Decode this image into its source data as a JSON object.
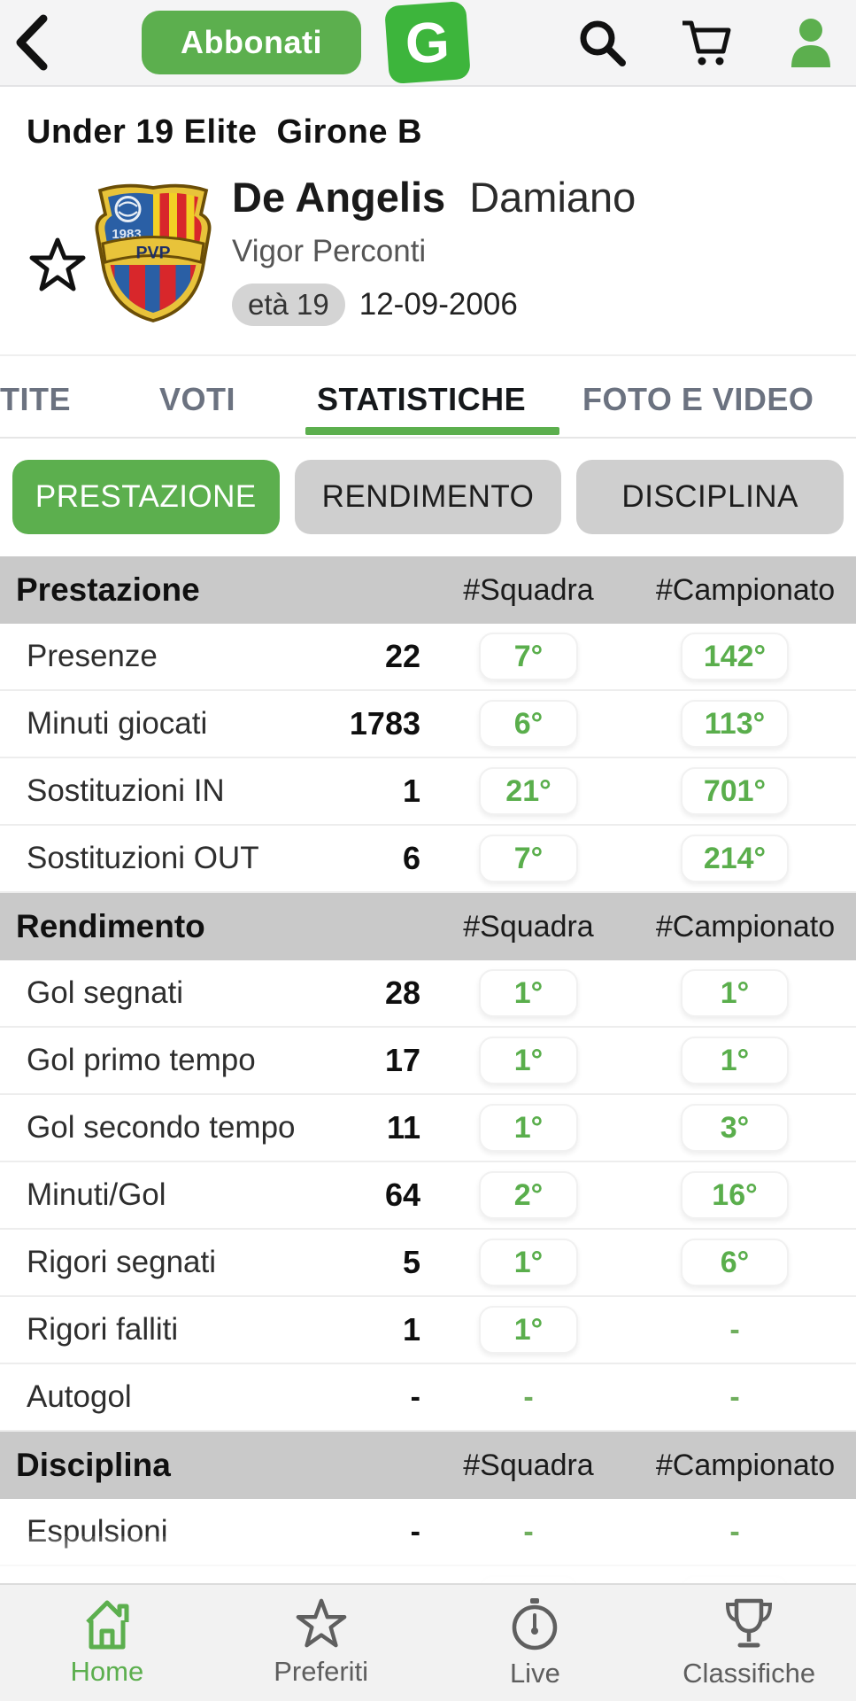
{
  "topbar": {
    "subscribe_label": "Abbonati",
    "logo_letter": "G"
  },
  "page": {
    "league_title": "Under 19 Elite  Girone B"
  },
  "player": {
    "last_name": "De Angelis",
    "first_name": "Damiano",
    "team": "Vigor Perconti",
    "age_label": "età 19",
    "birth_date": "12-09-2006",
    "crest_initials": "PVP",
    "crest_year": "1983"
  },
  "tabs": [
    {
      "label": "TITE",
      "active": false
    },
    {
      "label": "VOTI",
      "active": false
    },
    {
      "label": "STATISTICHE",
      "active": true
    },
    {
      "label": "FOTO E VIDEO",
      "active": false
    }
  ],
  "segments": [
    {
      "label": "PRESTAZIONE",
      "active": true
    },
    {
      "label": "RENDIMENTO",
      "active": false
    },
    {
      "label": "DISCIPLINA",
      "active": false
    }
  ],
  "table": {
    "col_squadra": "#Squadra",
    "col_campionato": "#Campionato",
    "sections": [
      {
        "title": "Prestazione",
        "rows": [
          {
            "label": "Presenze",
            "value": "22",
            "squadra": "7°",
            "campionato": "142°"
          },
          {
            "label": "Minuti giocati",
            "value": "1783",
            "squadra": "6°",
            "campionato": "113°"
          },
          {
            "label": "Sostituzioni IN",
            "value": "1",
            "squadra": "21°",
            "campionato": "701°"
          },
          {
            "label": "Sostituzioni OUT",
            "value": "6",
            "squadra": "7°",
            "campionato": "214°"
          }
        ]
      },
      {
        "title": "Rendimento",
        "rows": [
          {
            "label": "Gol segnati",
            "value": "28",
            "squadra": "1°",
            "campionato": "1°"
          },
          {
            "label": "Gol primo tempo",
            "value": "17",
            "squadra": "1°",
            "campionato": "1°"
          },
          {
            "label": "Gol secondo tempo",
            "value": "11",
            "squadra": "1°",
            "campionato": "3°"
          },
          {
            "label": "Minuti/Gol",
            "value": "64",
            "squadra": "2°",
            "campionato": "16°"
          },
          {
            "label": "Rigori segnati",
            "value": "5",
            "squadra": "1°",
            "campionato": "6°"
          },
          {
            "label": "Rigori falliti",
            "value": "1",
            "squadra": "1°",
            "campionato": "-"
          },
          {
            "label": "Autogol",
            "value": "-",
            "squadra": "-",
            "campionato": "-"
          }
        ]
      },
      {
        "title": "Disciplina",
        "rows": [
          {
            "label": "Espulsioni",
            "value": "-",
            "squadra": "-",
            "campionato": "-"
          },
          {
            "label": "",
            "value": "",
            "squadra": "",
            "campionato": "",
            "partial": true
          }
        ]
      }
    ]
  },
  "bottom_nav": [
    {
      "label": "Home",
      "active": true
    },
    {
      "label": "Preferiti",
      "active": false
    },
    {
      "label": "Live",
      "active": false
    },
    {
      "label": "Classifiche",
      "active": false
    }
  ],
  "colors": {
    "accent_green": "#5caf4e",
    "header_gray": "#c9c9c9",
    "segment_gray": "#cfcfcf"
  }
}
